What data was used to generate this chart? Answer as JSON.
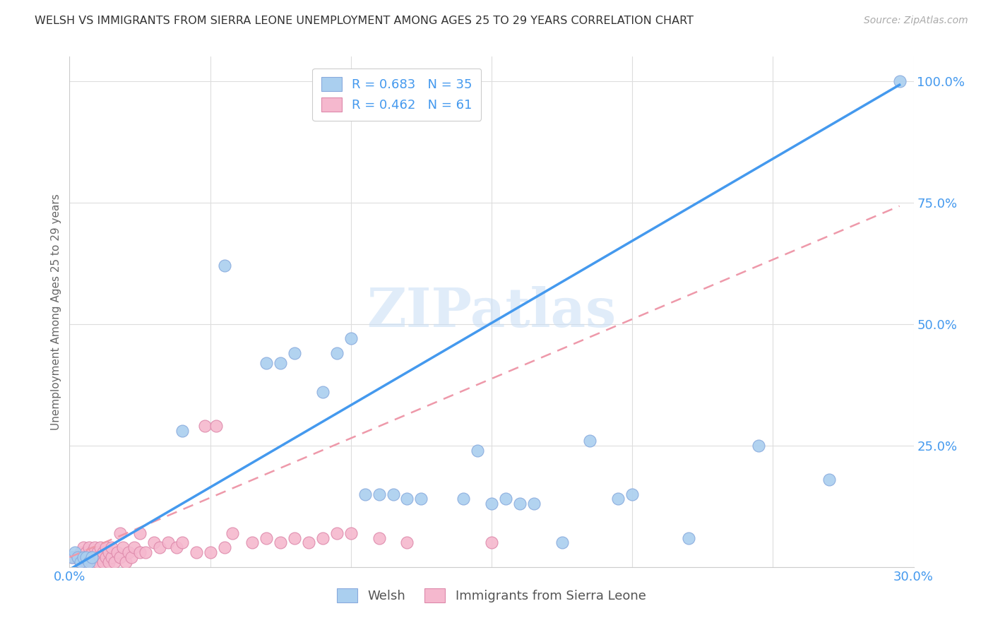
{
  "title": "WELSH VS IMMIGRANTS FROM SIERRA LEONE UNEMPLOYMENT AMONG AGES 25 TO 29 YEARS CORRELATION CHART",
  "source": "Source: ZipAtlas.com",
  "ylabel": "Unemployment Among Ages 25 to 29 years",
  "watermark": "ZIPatlas",
  "xlim": [
    0.0,
    0.3
  ],
  "ylim": [
    0.0,
    1.05
  ],
  "xtick_positions": [
    0.0,
    0.05,
    0.1,
    0.15,
    0.2,
    0.25,
    0.3
  ],
  "xtick_labels": [
    "0.0%",
    "",
    "",
    "",
    "",
    "",
    "30.0%"
  ],
  "ytick_positions": [
    0.0,
    0.25,
    0.5,
    0.75,
    1.0
  ],
  "ytick_labels": [
    "",
    "25.0%",
    "50.0%",
    "75.0%",
    "100.0%"
  ],
  "welsh_R": "0.683",
  "welsh_N": "35",
  "sierra_R": "0.462",
  "sierra_N": "61",
  "welsh_color": "#aacfef",
  "sierra_color": "#f5b8ce",
  "welsh_line_color": "#4499ee",
  "sierra_line_color": "#ee99aa",
  "welsh_x": [
    0.001,
    0.002,
    0.003,
    0.004,
    0.005,
    0.006,
    0.007,
    0.008,
    0.04,
    0.055,
    0.07,
    0.075,
    0.08,
    0.09,
    0.095,
    0.1,
    0.105,
    0.11,
    0.115,
    0.12,
    0.125,
    0.14,
    0.145,
    0.15,
    0.155,
    0.16,
    0.165,
    0.175,
    0.185,
    0.195,
    0.2,
    0.22,
    0.245,
    0.27,
    0.295
  ],
  "welsh_y": [
    0.02,
    0.03,
    0.02,
    0.01,
    0.02,
    0.02,
    0.01,
    0.02,
    0.28,
    0.62,
    0.42,
    0.42,
    0.44,
    0.36,
    0.44,
    0.47,
    0.15,
    0.15,
    0.15,
    0.14,
    0.14,
    0.14,
    0.24,
    0.13,
    0.14,
    0.13,
    0.13,
    0.05,
    0.26,
    0.14,
    0.15,
    0.06,
    0.25,
    0.18,
    1.0
  ],
  "sierra_x": [
    0.001,
    0.002,
    0.003,
    0.004,
    0.004,
    0.005,
    0.005,
    0.006,
    0.006,
    0.007,
    0.007,
    0.008,
    0.008,
    0.009,
    0.009,
    0.01,
    0.01,
    0.011,
    0.011,
    0.012,
    0.012,
    0.013,
    0.013,
    0.014,
    0.014,
    0.015,
    0.015,
    0.016,
    0.017,
    0.018,
    0.019,
    0.02,
    0.021,
    0.022,
    0.023,
    0.025,
    0.027,
    0.03,
    0.032,
    0.035,
    0.038,
    0.04,
    0.045,
    0.05,
    0.055,
    0.065,
    0.07,
    0.075,
    0.08,
    0.085,
    0.09,
    0.095,
    0.1,
    0.11,
    0.12,
    0.048,
    0.052,
    0.058,
    0.15,
    0.018,
    0.025
  ],
  "sierra_y": [
    0.02,
    0.02,
    0.02,
    0.01,
    0.03,
    0.02,
    0.04,
    0.01,
    0.03,
    0.02,
    0.04,
    0.01,
    0.03,
    0.02,
    0.04,
    0.01,
    0.03,
    0.02,
    0.04,
    0.01,
    0.03,
    0.02,
    0.04,
    0.01,
    0.03,
    0.02,
    0.04,
    0.01,
    0.03,
    0.02,
    0.04,
    0.01,
    0.03,
    0.02,
    0.04,
    0.03,
    0.03,
    0.05,
    0.04,
    0.05,
    0.04,
    0.05,
    0.03,
    0.03,
    0.04,
    0.05,
    0.06,
    0.05,
    0.06,
    0.05,
    0.06,
    0.07,
    0.07,
    0.06,
    0.05,
    0.29,
    0.29,
    0.07,
    0.05,
    0.07,
    0.07
  ],
  "welsh_line_slope": 3.38,
  "welsh_line_intercept": -0.005,
  "sierra_line_slope": 2.45,
  "sierra_line_intercept": 0.02
}
